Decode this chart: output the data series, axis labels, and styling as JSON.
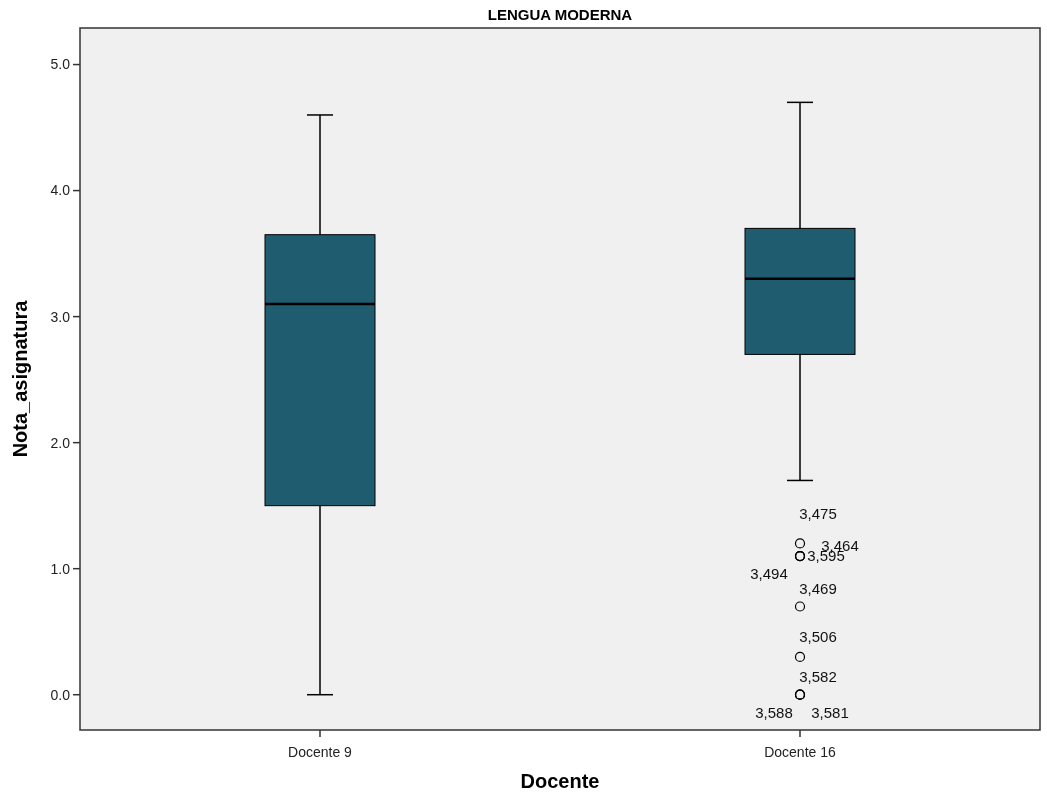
{
  "chart_data": {
    "type": "box",
    "title": "LENGUA MODERNA",
    "xlabel": "Docente",
    "ylabel": "Nota_asignatura",
    "categories": [
      "Docente 9",
      "Docente 16"
    ],
    "color": "#1f5c70",
    "boxes": [
      {
        "low": 0,
        "q1": 1.5,
        "median": 3.1,
        "q3": 3.65,
        "high": 4.6
      },
      {
        "low": 1.7,
        "q1": 2.7,
        "median": 3.3,
        "q3": 3.7,
        "high": 4.7,
        "outliers": [
          1.2,
          1.1,
          1.1,
          1.1,
          0.7,
          0.3,
          0,
          0,
          0
        ]
      }
    ],
    "ylim": [
      -0.28,
      5.29
    ],
    "yticks": [
      {
        "value": 0,
        "label": "0.0"
      },
      {
        "value": 1,
        "label": "1.0"
      },
      {
        "value": 2,
        "label": "2.0"
      },
      {
        "value": 3,
        "label": "3.0"
      },
      {
        "value": 4,
        "label": "4.0"
      },
      {
        "value": 5,
        "label": "5.0"
      }
    ],
    "grid": false,
    "annotations": [
      "3,475",
      "3,464",
      "3,595",
      "3,494",
      "3,469",
      "3,506",
      "3,582",
      "3,588",
      "3,581"
    ]
  }
}
